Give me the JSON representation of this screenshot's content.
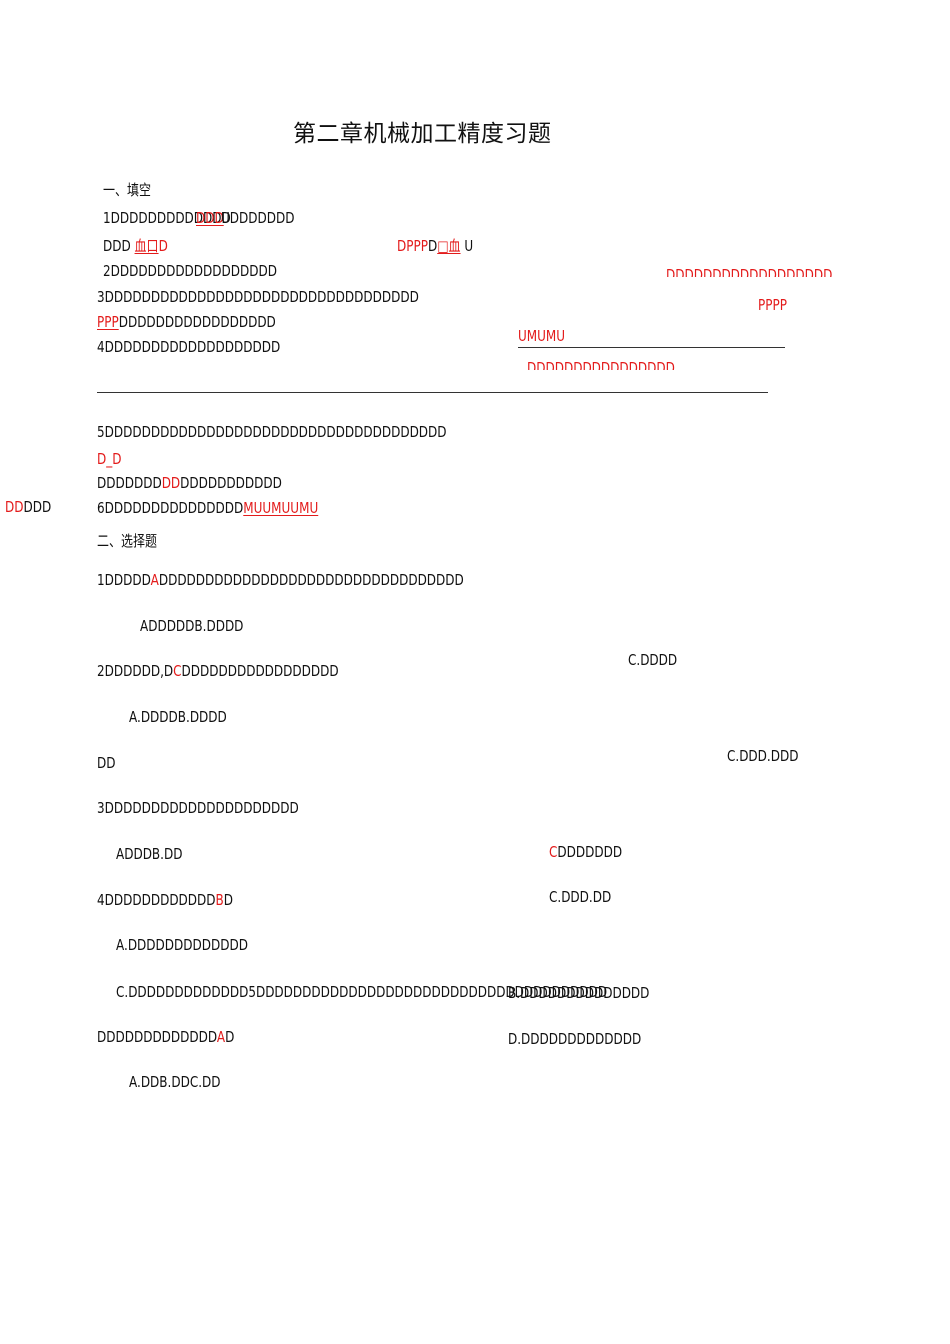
{
  "title": "第二章机械加工精度习题",
  "section1": {
    "heading": "一、填空",
    "q1": {
      "a": "1DDDDDDDDDDDDD",
      "b": "DDD",
      "c": "UDDDDDDD"
    },
    "q1b": {
      "a": "DDD",
      "b": "血口",
      "c": "D",
      "d": "DPPP",
      "e": "D",
      "f": "□血",
      "g": "U"
    },
    "q2": {
      "a": "2DDDDDDDDDDDDDDDDDD",
      "b": "DDDDDDDDDDDDDDDDDD"
    },
    "q3": {
      "a": "3DDDDDDDDDDDDDDDDDDDDDDDDDDDDDDDDDD",
      "b": "PPPP"
    },
    "q3b": {
      "a": "PPP",
      "b": "DDDDDDDDDDDDDDDDD"
    },
    "q4": {
      "a": "4DDDDDDDDDDDDDDDDDDD",
      "b": "UMUMU",
      "c": "DDDDDDDDDDDDDDDD"
    },
    "q5": {
      "a": "5DDDDDDDDDDDDDDDDDDDDDDDDDDDDDDDDDDDDD",
      "b": "D_D"
    },
    "q5b": {
      "a": "DDDDDDD",
      "b": "DD",
      "c": "DDDDDDDDDDD"
    },
    "margin": {
      "a": "DD",
      "b": "DDD"
    },
    "q6": {
      "a": "6DDDDDDDDDDDDDDD",
      "b": "MUUMUUMU"
    }
  },
  "section2": {
    "heading": "二、选择题",
    "q1": {
      "a": "1DDDDD",
      "b": "A",
      "c": "DDDDDDDDDDDDDDDDDDDDDDDDDDDDDDDDD"
    },
    "q1opts": "ADDDDDB.DDDD",
    "q1c": "C.DDDD",
    "q2": {
      "a": "2DDDDDD,D",
      "b": "C",
      "c": "DDDDDDDDDDDDDDDDD"
    },
    "q2opts": "A.DDDDB.DDDD",
    "q2dd": "DD",
    "q2c": "C.DDD.DDD",
    "q3": "3DDDDDDDDDDDDDDDDDDDDD",
    "q3opts": "ADDDB.DD",
    "q3c": {
      "a": "C",
      "b": "DDDDDDD"
    },
    "q4": {
      "a": "4DDDDDDDDDDDD",
      "b": "B",
      "c": "D"
    },
    "q4cd": "C.DDD.DD",
    "q4a": "A.DDDDDDDDDDDDD",
    "q4c": "C.DDDDDDDDDDDDD5DDDDDDDDDDDDDDDDDDDDDDDDDDDDDDDDDDDDDD",
    "q4b": "B.DDDDDDDDDDDDDD",
    "q5": {
      "a": "DDDDDDDDDDDDD",
      "b": "A",
      "c": "D"
    },
    "q5d": "D.DDDDDDDDDDDDD",
    "q5opts": "A.DDB.DDC.DD"
  },
  "colors": {
    "answer_red": "#e31b1b",
    "text": "#111111"
  }
}
